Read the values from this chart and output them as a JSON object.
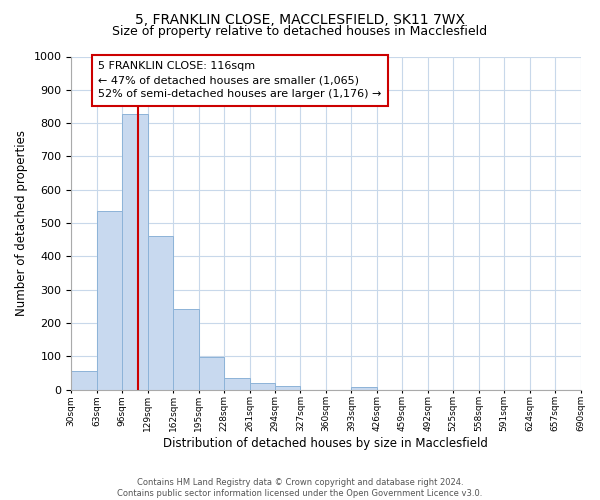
{
  "title1": "5, FRANKLIN CLOSE, MACCLESFIELD, SK11 7WX",
  "title2": "Size of property relative to detached houses in Macclesfield",
  "xlabel": "Distribution of detached houses by size in Macclesfield",
  "ylabel": "Number of detached properties",
  "footnote": "Contains HM Land Registry data © Crown copyright and database right 2024.\nContains public sector information licensed under the Open Government Licence v3.0.",
  "bin_edges": [
    30,
    63,
    96,
    129,
    162,
    195,
    228,
    261,
    294,
    327,
    360,
    393,
    426,
    459,
    492,
    525,
    558,
    591,
    624,
    657,
    690
  ],
  "bar_heights": [
    55,
    535,
    828,
    460,
    243,
    97,
    35,
    20,
    12,
    0,
    0,
    8,
    0,
    0,
    0,
    0,
    0,
    0,
    0,
    0
  ],
  "bar_color": "#c8d9ef",
  "bar_edge_color": "#8db3d8",
  "property_size": 116,
  "red_line_color": "#cc0000",
  "annotation_text": "5 FRANKLIN CLOSE: 116sqm\n← 47% of detached houses are smaller (1,065)\n52% of semi-detached houses are larger (1,176) →",
  "annotation_box_color": "#ffffff",
  "annotation_box_edge": "#cc0000",
  "ylim": [
    0,
    1000
  ],
  "yticks": [
    0,
    100,
    200,
    300,
    400,
    500,
    600,
    700,
    800,
    900,
    1000
  ],
  "bg_color": "#ffffff",
  "grid_color": "#c8d8ea",
  "title1_fontsize": 10,
  "title2_fontsize": 9,
  "xlabel_fontsize": 8.5,
  "ylabel_fontsize": 8.5,
  "annot_fontsize": 8
}
